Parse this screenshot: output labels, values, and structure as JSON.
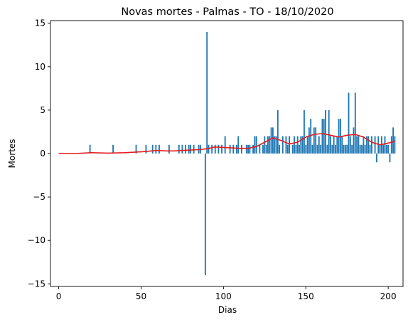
{
  "chart_data": {
    "type": "bar",
    "title": "Novas mortes - Palmas - TO - 18/10/2020",
    "xlabel": "Dias",
    "ylabel": "Mortes",
    "xlim": [
      -5,
      209
    ],
    "ylim": [
      -15.3,
      15.3
    ],
    "xticks": [
      0,
      50,
      100,
      150,
      200
    ],
    "yticks": [
      -15,
      -10,
      -5,
      0,
      5,
      10,
      15
    ],
    "grid": false,
    "legend": "none",
    "colors": {
      "bars": "#1f77b4",
      "line": "#e41a1c"
    },
    "series": [
      {
        "kind": "bar",
        "points": [
          [
            19,
            1
          ],
          [
            33,
            1
          ],
          [
            47,
            1
          ],
          [
            53,
            1
          ],
          [
            57,
            1
          ],
          [
            59,
            1
          ],
          [
            61,
            1
          ],
          [
            67,
            1
          ],
          [
            73,
            1
          ],
          [
            75,
            1
          ],
          [
            77,
            1
          ],
          [
            79,
            1
          ],
          [
            80,
            1
          ],
          [
            82,
            1
          ],
          [
            85,
            1
          ],
          [
            86,
            1
          ],
          [
            89,
            -14
          ],
          [
            90,
            14
          ],
          [
            91,
            1
          ],
          [
            93,
            1
          ],
          [
            95,
            1
          ],
          [
            97,
            1
          ],
          [
            99,
            1
          ],
          [
            101,
            2
          ],
          [
            104,
            1
          ],
          [
            106,
            1
          ],
          [
            108,
            1
          ],
          [
            109,
            2
          ],
          [
            111,
            1
          ],
          [
            114,
            1
          ],
          [
            115,
            1
          ],
          [
            116,
            1
          ],
          [
            118,
            1
          ],
          [
            119,
            2
          ],
          [
            120,
            2
          ],
          [
            122,
            1
          ],
          [
            124,
            1
          ],
          [
            125,
            2
          ],
          [
            126,
            1
          ],
          [
            127,
            2
          ],
          [
            128,
            2
          ],
          [
            129,
            3
          ],
          [
            130,
            3
          ],
          [
            131,
            2
          ],
          [
            132,
            2
          ],
          [
            133,
            5
          ],
          [
            134,
            1
          ],
          [
            136,
            2
          ],
          [
            138,
            2
          ],
          [
            139,
            1
          ],
          [
            140,
            2
          ],
          [
            142,
            1
          ],
          [
            143,
            2
          ],
          [
            144,
            1
          ],
          [
            145,
            2
          ],
          [
            146,
            1
          ],
          [
            147,
            2
          ],
          [
            148,
            2
          ],
          [
            149,
            5
          ],
          [
            150,
            1
          ],
          [
            151,
            2
          ],
          [
            152,
            3
          ],
          [
            153,
            4
          ],
          [
            154,
            1
          ],
          [
            155,
            3
          ],
          [
            156,
            3
          ],
          [
            157,
            1
          ],
          [
            158,
            2
          ],
          [
            159,
            1
          ],
          [
            160,
            4
          ],
          [
            161,
            4
          ],
          [
            162,
            5
          ],
          [
            163,
            1
          ],
          [
            164,
            5
          ],
          [
            165,
            2
          ],
          [
            166,
            1
          ],
          [
            167,
            2
          ],
          [
            168,
            1
          ],
          [
            169,
            2
          ],
          [
            170,
            4
          ],
          [
            171,
            4
          ],
          [
            172,
            2
          ],
          [
            173,
            1
          ],
          [
            174,
            1
          ],
          [
            175,
            1
          ],
          [
            176,
            7
          ],
          [
            177,
            2
          ],
          [
            178,
            1
          ],
          [
            179,
            3
          ],
          [
            180,
            7
          ],
          [
            181,
            2
          ],
          [
            182,
            2
          ],
          [
            183,
            1
          ],
          [
            184,
            1
          ],
          [
            185,
            2
          ],
          [
            186,
            1
          ],
          [
            187,
            2
          ],
          [
            188,
            2
          ],
          [
            189,
            1
          ],
          [
            190,
            2
          ],
          [
            192,
            2
          ],
          [
            193,
            -1
          ],
          [
            194,
            2
          ],
          [
            195,
            1
          ],
          [
            196,
            2
          ],
          [
            197,
            1
          ],
          [
            198,
            2
          ],
          [
            199,
            1
          ],
          [
            200,
            1
          ],
          [
            201,
            -1
          ],
          [
            202,
            2
          ],
          [
            203,
            3
          ],
          [
            204,
            2
          ]
        ]
      },
      {
        "kind": "line",
        "points": [
          [
            0,
            0
          ],
          [
            10,
            0
          ],
          [
            20,
            0.1
          ],
          [
            30,
            0.05
          ],
          [
            40,
            0.1
          ],
          [
            50,
            0.2
          ],
          [
            60,
            0.35
          ],
          [
            65,
            0.3
          ],
          [
            70,
            0.3
          ],
          [
            80,
            0.4
          ],
          [
            85,
            0.45
          ],
          [
            90,
            0.55
          ],
          [
            95,
            0.75
          ],
          [
            100,
            0.7
          ],
          [
            105,
            0.65
          ],
          [
            110,
            0.6
          ],
          [
            115,
            0.6
          ],
          [
            120,
            0.8
          ],
          [
            125,
            1.3
          ],
          [
            130,
            1.8
          ],
          [
            135,
            1.5
          ],
          [
            140,
            1.1
          ],
          [
            145,
            1.3
          ],
          [
            150,
            1.9
          ],
          [
            155,
            2.2
          ],
          [
            160,
            2.3
          ],
          [
            165,
            2.1
          ],
          [
            170,
            1.9
          ],
          [
            175,
            2.1
          ],
          [
            180,
            2.2
          ],
          [
            185,
            1.9
          ],
          [
            190,
            1.3
          ],
          [
            195,
            1.0
          ],
          [
            200,
            1.2
          ],
          [
            204,
            1.4
          ]
        ]
      }
    ]
  }
}
